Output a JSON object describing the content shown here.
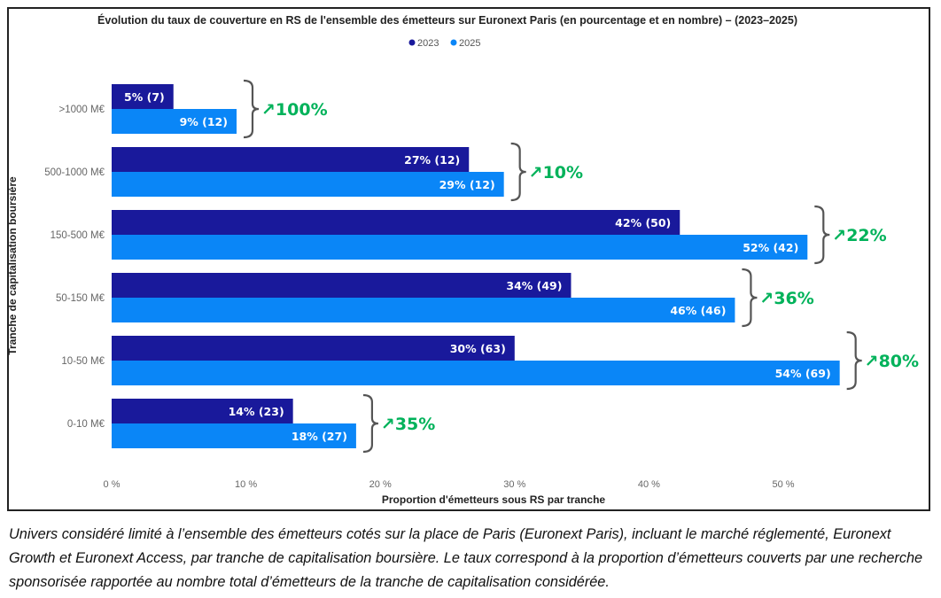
{
  "chart_data": {
    "type": "bar",
    "orientation": "horizontal",
    "title": "Évolution du taux de couverture en RS de l'ensemble des émetteurs sur Euronext Paris (en pourcentage et en nombre) – (2023–2025)",
    "xlabel": "Proportion d'émetteurs sous RS par tranche",
    "ylabel": "Tranche de capitalisation boursière",
    "xlim": [
      0,
      55
    ],
    "xticks": [
      "0 %",
      "10 %",
      "20 %",
      "30 %",
      "40 %",
      "50 %"
    ],
    "xtick_values": [
      0,
      10,
      20,
      30,
      40,
      50
    ],
    "grid": false,
    "legend_position": "top-center",
    "categories": [
      ">1000 M€",
      "500-1000 M€",
      "150-500 M€",
      "50-150 M€",
      "10-50 M€",
      "0-10 M€"
    ],
    "series": [
      {
        "name": "2023",
        "color": "#19199b",
        "values": [
          4.6,
          26.6,
          42.3,
          34.2,
          30.0,
          13.5
        ],
        "labels": [
          "5% (7)",
          "27% (12)",
          "42% (50)",
          "34% (49)",
          "30% (63)",
          "14% (23)"
        ]
      },
      {
        "name": "2025",
        "color": "#0a86f7",
        "values": [
          9.3,
          29.2,
          51.8,
          46.4,
          54.2,
          18.2
        ],
        "labels": [
          "9% (12)",
          "29% (12)",
          "52% (42)",
          "46% (46)",
          "54% (69)",
          "18% (27)"
        ]
      }
    ],
    "annotations": [
      "↗100%",
      "↗10%",
      "↗22%",
      "↗36%",
      "↗80%",
      "↗35%"
    ],
    "annotation_color": "#00b25a"
  },
  "caption": "Univers considéré limité à l’ensemble des émetteurs cotés sur la place de Paris (Euronext Paris), incluant le marché réglementé, Euronext Growth et Euronext Access, par tranche de capitalisation boursière. Le taux correspond à la proportion d’émetteurs couverts par une recherche sponsorisée rapportée au nombre total d’émetteurs de la tranche de capitalisation considérée."
}
